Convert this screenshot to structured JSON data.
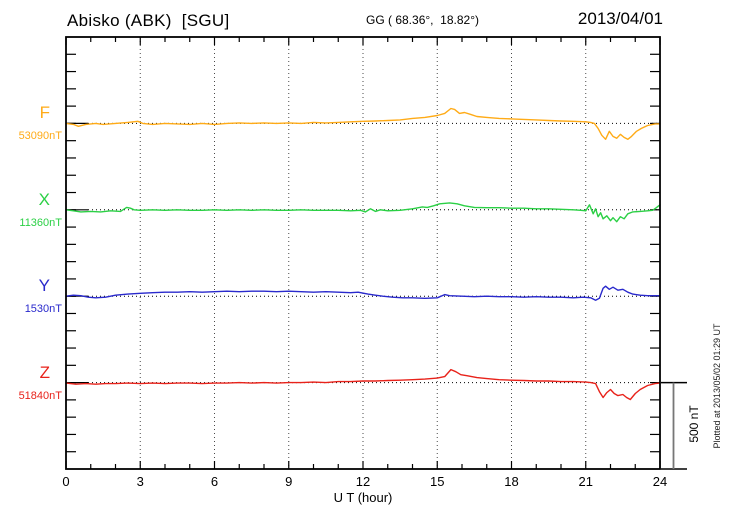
{
  "header": {
    "station": "Abisko (ABK)  [SGU]",
    "coordinates": "GG ( 68.36°,  18.82°)",
    "date": "2013/04/01"
  },
  "footer": {
    "xlabel": "U T (hour)"
  },
  "side": {
    "scale_label": "500 nT",
    "plotted_note": "Plotted at 2013/05/02 01:29 UT"
  },
  "chart_data": {
    "type": "line",
    "title": "Abisko (ABK) [SGU] magnetogram 2013/04/01",
    "xlabel": "U T (hour)",
    "x_range": [
      0,
      24
    ],
    "x_ticks": [
      0,
      3,
      6,
      9,
      12,
      15,
      18,
      21,
      24
    ],
    "minor_tick_interval_hours": 1,
    "grid": "dotted vertical lines every 3 hours; dotted horizontal baseline per component; 100 nT edge ticks",
    "row_spacing_nT": 500,
    "scale_bar_nT": 500,
    "legend_position": "left baseline labels",
    "series": [
      {
        "name": "F",
        "baseline_label": "53090nT",
        "baseline_nT": 53090,
        "color": "#ffab17",
        "points": [
          [
            0,
            0
          ],
          [
            0.3,
            -6
          ],
          [
            0.5,
            -17
          ],
          [
            0.8,
            -6
          ],
          [
            1.2,
            0
          ],
          [
            1.5,
            -6
          ],
          [
            2,
            0
          ],
          [
            2.5,
            6
          ],
          [
            2.9,
            12
          ],
          [
            3.1,
            0
          ],
          [
            3.5,
            -6
          ],
          [
            4,
            0
          ],
          [
            4.5,
            -3
          ],
          [
            5,
            -6
          ],
          [
            5.5,
            0
          ],
          [
            6,
            -6
          ],
          [
            6.5,
            0
          ],
          [
            7,
            3
          ],
          [
            7.5,
            0
          ],
          [
            8,
            3
          ],
          [
            8.5,
            0
          ],
          [
            9,
            3
          ],
          [
            9.5,
            0
          ],
          [
            10,
            6
          ],
          [
            10.5,
            3
          ],
          [
            11,
            6
          ],
          [
            11.5,
            9
          ],
          [
            12,
            12
          ],
          [
            12.5,
            14
          ],
          [
            13,
            17
          ],
          [
            13.5,
            20
          ],
          [
            14,
            29
          ],
          [
            14.5,
            35
          ],
          [
            15,
            46
          ],
          [
            15.3,
            58
          ],
          [
            15.55,
            86
          ],
          [
            15.7,
            81
          ],
          [
            15.9,
            58
          ],
          [
            16.1,
            63
          ],
          [
            16.35,
            52
          ],
          [
            16.6,
            40
          ],
          [
            17,
            35
          ],
          [
            17.5,
            29
          ],
          [
            18,
            26
          ],
          [
            18.5,
            23
          ],
          [
            19,
            20
          ],
          [
            19.5,
            17
          ],
          [
            20,
            14
          ],
          [
            20.5,
            12
          ],
          [
            21,
            9
          ],
          [
            21.2,
            6
          ],
          [
            21.35,
            0
          ],
          [
            21.5,
            -29
          ],
          [
            21.65,
            -69
          ],
          [
            21.8,
            -92
          ],
          [
            21.95,
            -46
          ],
          [
            22.1,
            -75
          ],
          [
            22.25,
            -86
          ],
          [
            22.4,
            -63
          ],
          [
            22.55,
            -81
          ],
          [
            22.7,
            -92
          ],
          [
            22.85,
            -75
          ],
          [
            23.05,
            -46
          ],
          [
            23.25,
            -29
          ],
          [
            23.5,
            -12
          ],
          [
            23.8,
            -3
          ],
          [
            24,
            -3
          ]
        ]
      },
      {
        "name": "X",
        "baseline_label": "11360nT",
        "baseline_nT": 11360,
        "color": "#2bd045",
        "points": [
          [
            0,
            0
          ],
          [
            0.3,
            -6
          ],
          [
            0.6,
            -12
          ],
          [
            1,
            -9
          ],
          [
            1.4,
            -12
          ],
          [
            1.8,
            -6
          ],
          [
            2.2,
            -9
          ],
          [
            2.45,
            14
          ],
          [
            2.6,
            9
          ],
          [
            2.75,
            0
          ],
          [
            3,
            -3
          ],
          [
            3.5,
            0
          ],
          [
            4,
            -3
          ],
          [
            4.5,
            0
          ],
          [
            5,
            -3
          ],
          [
            5.5,
            -3
          ],
          [
            6,
            0
          ],
          [
            6.5,
            -3
          ],
          [
            7,
            0
          ],
          [
            7.5,
            -3
          ],
          [
            8,
            0
          ],
          [
            8.5,
            -3
          ],
          [
            9,
            -3
          ],
          [
            9.5,
            0
          ],
          [
            10,
            -3
          ],
          [
            10.5,
            -3
          ],
          [
            11,
            -3
          ],
          [
            11.5,
            -6
          ],
          [
            11.9,
            -3
          ],
          [
            12.1,
            -12
          ],
          [
            12.3,
            6
          ],
          [
            12.5,
            -9
          ],
          [
            12.7,
            0
          ],
          [
            13,
            -6
          ],
          [
            13.5,
            -3
          ],
          [
            14,
            6
          ],
          [
            14.4,
            17
          ],
          [
            14.6,
            14
          ],
          [
            14.85,
            23
          ],
          [
            15.1,
            35
          ],
          [
            15.5,
            40
          ],
          [
            15.8,
            35
          ],
          [
            16.1,
            23
          ],
          [
            16.5,
            14
          ],
          [
            17,
            12
          ],
          [
            17.5,
            12
          ],
          [
            18,
            9
          ],
          [
            18.5,
            9
          ],
          [
            19,
            6
          ],
          [
            19.5,
            6
          ],
          [
            20,
            3
          ],
          [
            20.5,
            0
          ],
          [
            20.8,
            -3
          ],
          [
            21,
            -6
          ],
          [
            21.15,
            29
          ],
          [
            21.3,
            -23
          ],
          [
            21.4,
            6
          ],
          [
            21.5,
            -40
          ],
          [
            21.6,
            -17
          ],
          [
            21.7,
            -52
          ],
          [
            21.85,
            -35
          ],
          [
            22,
            -63
          ],
          [
            22.1,
            -46
          ],
          [
            22.25,
            -69
          ],
          [
            22.4,
            -40
          ],
          [
            22.55,
            -52
          ],
          [
            22.7,
            -23
          ],
          [
            22.9,
            -12
          ],
          [
            23.2,
            -9
          ],
          [
            23.5,
            -6
          ],
          [
            23.7,
            -3
          ],
          [
            23.85,
            12
          ],
          [
            24,
            29
          ]
        ]
      },
      {
        "name": "Y",
        "baseline_label": "1530nT",
        "baseline_nT": 1530,
        "color": "#2929cc",
        "points": [
          [
            0,
            0
          ],
          [
            0.3,
            6
          ],
          [
            0.6,
            3
          ],
          [
            0.9,
            -6
          ],
          [
            1.2,
            -9
          ],
          [
            1.6,
            -6
          ],
          [
            2,
            6
          ],
          [
            2.5,
            12
          ],
          [
            3,
            17
          ],
          [
            3.5,
            20
          ],
          [
            4,
            23
          ],
          [
            4.5,
            23
          ],
          [
            5,
            26
          ],
          [
            5.5,
            23
          ],
          [
            6,
            26
          ],
          [
            6.5,
            29
          ],
          [
            7,
            26
          ],
          [
            7.5,
            29
          ],
          [
            8,
            29
          ],
          [
            8.5,
            26
          ],
          [
            9,
            29
          ],
          [
            9.5,
            26
          ],
          [
            10,
            23
          ],
          [
            10.5,
            26
          ],
          [
            11,
            23
          ],
          [
            11.5,
            20
          ],
          [
            11.8,
            23
          ],
          [
            12.2,
            12
          ],
          [
            12.5,
            6
          ],
          [
            12.8,
            0
          ],
          [
            13.2,
            -6
          ],
          [
            13.6,
            -9
          ],
          [
            14,
            -9
          ],
          [
            14.5,
            -12
          ],
          [
            15,
            -9
          ],
          [
            15.3,
            9
          ],
          [
            15.5,
            3
          ],
          [
            16,
            0
          ],
          [
            16.5,
            -3
          ],
          [
            17,
            0
          ],
          [
            17.5,
            -3
          ],
          [
            18,
            -3
          ],
          [
            18.5,
            -6
          ],
          [
            19,
            -3
          ],
          [
            19.5,
            -6
          ],
          [
            20,
            -6
          ],
          [
            20.5,
            -9
          ],
          [
            20.9,
            -6
          ],
          [
            21.2,
            -9
          ],
          [
            21.4,
            -23
          ],
          [
            21.55,
            -12
          ],
          [
            21.7,
            46
          ],
          [
            21.8,
            58
          ],
          [
            21.95,
            40
          ],
          [
            22.1,
            52
          ],
          [
            22.3,
            35
          ],
          [
            22.5,
            40
          ],
          [
            22.7,
            23
          ],
          [
            22.9,
            12
          ],
          [
            23.2,
            6
          ],
          [
            23.5,
            3
          ],
          [
            23.8,
            3
          ],
          [
            24,
            3
          ]
        ]
      },
      {
        "name": "Z",
        "baseline_label": "51840nT",
        "baseline_nT": 51840,
        "color": "#e8221a",
        "points": [
          [
            0,
            -3
          ],
          [
            0.4,
            -9
          ],
          [
            0.8,
            -6
          ],
          [
            1.2,
            -9
          ],
          [
            1.6,
            -6
          ],
          [
            2,
            -6
          ],
          [
            2.5,
            -3
          ],
          [
            3,
            -6
          ],
          [
            3.5,
            -3
          ],
          [
            4,
            -6
          ],
          [
            4.5,
            -3
          ],
          [
            5,
            -3
          ],
          [
            5.5,
            -6
          ],
          [
            6,
            -3
          ],
          [
            6.5,
            -3
          ],
          [
            7,
            0
          ],
          [
            7.5,
            -3
          ],
          [
            8,
            0
          ],
          [
            8.5,
            -3
          ],
          [
            9,
            0
          ],
          [
            9.5,
            0
          ],
          [
            10,
            3
          ],
          [
            10.5,
            0
          ],
          [
            11,
            6
          ],
          [
            11.5,
            6
          ],
          [
            12,
            9
          ],
          [
            12.5,
            9
          ],
          [
            13,
            12
          ],
          [
            13.5,
            14
          ],
          [
            14,
            17
          ],
          [
            14.5,
            20
          ],
          [
            15,
            26
          ],
          [
            15.3,
            35
          ],
          [
            15.55,
            75
          ],
          [
            15.75,
            63
          ],
          [
            15.95,
            46
          ],
          [
            16.2,
            40
          ],
          [
            16.6,
            29
          ],
          [
            17,
            23
          ],
          [
            17.5,
            17
          ],
          [
            18,
            14
          ],
          [
            18.5,
            12
          ],
          [
            19,
            9
          ],
          [
            19.5,
            9
          ],
          [
            20,
            6
          ],
          [
            20.5,
            6
          ],
          [
            21,
            3
          ],
          [
            21.2,
            0
          ],
          [
            21.4,
            -6
          ],
          [
            21.55,
            -52
          ],
          [
            21.7,
            -86
          ],
          [
            21.85,
            -58
          ],
          [
            22,
            -40
          ],
          [
            22.15,
            -63
          ],
          [
            22.3,
            -75
          ],
          [
            22.5,
            -69
          ],
          [
            22.65,
            -86
          ],
          [
            22.8,
            -98
          ],
          [
            23,
            -63
          ],
          [
            23.2,
            -40
          ],
          [
            23.5,
            -17
          ],
          [
            23.8,
            -6
          ],
          [
            24,
            -3
          ]
        ]
      }
    ]
  }
}
